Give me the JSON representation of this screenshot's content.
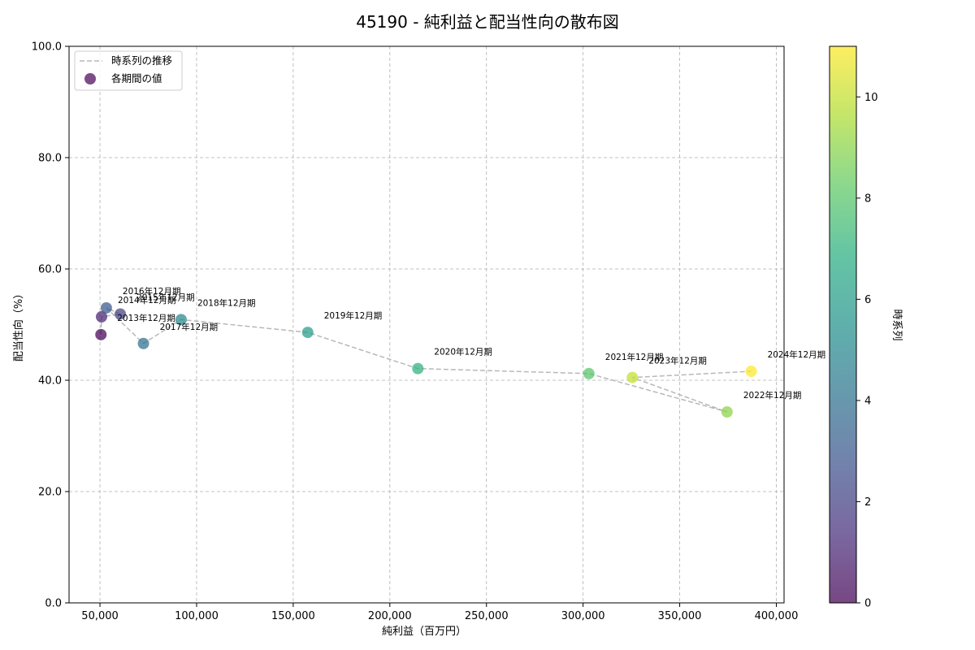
{
  "chart_data": {
    "type": "scatter",
    "title": "45190 - 純利益と配当性向の散布図",
    "xlabel": "純利益（百万円）",
    "ylabel": "配当性向（%）",
    "xlim": [
      34000,
      404000
    ],
    "ylim": [
      0,
      100
    ],
    "x_ticks": [
      50000,
      100000,
      150000,
      200000,
      250000,
      300000,
      350000,
      400000
    ],
    "x_tick_labels": [
      "50,000",
      "100,000",
      "150,000",
      "200,000",
      "250,000",
      "300,000",
      "350,000",
      "400,000"
    ],
    "y_ticks": [
      0,
      20,
      40,
      60,
      80,
      100
    ],
    "y_tick_labels": [
      "0.0",
      "20.0",
      "40.0",
      "60.0",
      "80.0",
      "100.0"
    ],
    "grid": true,
    "legend": {
      "position": "top-left",
      "entries": [
        "時系列の推移",
        "各期間の値"
      ]
    },
    "colorbar": {
      "label": "時系列",
      "range": [
        0,
        11
      ],
      "ticks": [
        0,
        2,
        4,
        6,
        8,
        10
      ],
      "tick_labels": [
        "0",
        "2",
        "4",
        "6",
        "8",
        "10"
      ],
      "colormap": "viridis"
    },
    "points": [
      {
        "label": "2013年12月期",
        "x": 50500,
        "y": 48.2,
        "t": 0
      },
      {
        "label": "2014年12月期",
        "x": 50800,
        "y": 51.4,
        "t": 1
      },
      {
        "label": "2015年12月期",
        "x": 60500,
        "y": 51.9,
        "t": 2
      },
      {
        "label": "2016年12月期",
        "x": 53300,
        "y": 53.0,
        "t": 3
      },
      {
        "label": "2017年12月期",
        "x": 72500,
        "y": 46.6,
        "t": 4
      },
      {
        "label": "2018年12月期",
        "x": 92000,
        "y": 50.9,
        "t": 5
      },
      {
        "label": "2019年12月期",
        "x": 157500,
        "y": 48.6,
        "t": 6
      },
      {
        "label": "2020年12月期",
        "x": 214500,
        "y": 42.1,
        "t": 7
      },
      {
        "label": "2021年12月期",
        "x": 303000,
        "y": 41.2,
        "t": 8
      },
      {
        "label": "2022年12月期",
        "x": 374500,
        "y": 34.3,
        "t": 9
      },
      {
        "label": "2023年12月期",
        "x": 325500,
        "y": 40.5,
        "t": 10
      },
      {
        "label": "2024年12月期",
        "x": 387000,
        "y": 41.6,
        "t": 11
      }
    ]
  }
}
